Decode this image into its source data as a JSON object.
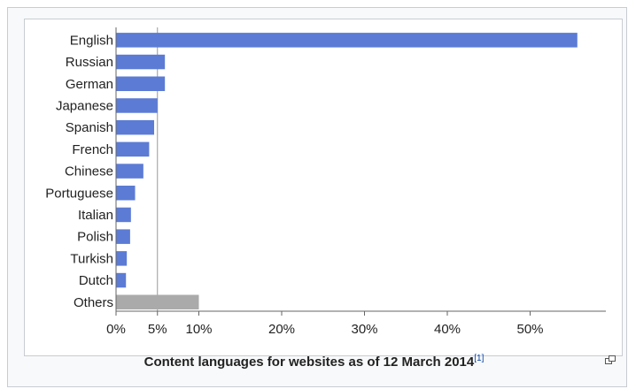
{
  "chart_data": {
    "type": "bar",
    "orientation": "horizontal",
    "categories": [
      "English",
      "Russian",
      "German",
      "Japanese",
      "Spanish",
      "French",
      "Chinese",
      "Portuguese",
      "Italian",
      "Polish",
      "Turkish",
      "Dutch",
      "Others"
    ],
    "values": [
      55.7,
      5.9,
      5.9,
      5.0,
      4.6,
      4.0,
      3.3,
      2.3,
      1.8,
      1.7,
      1.3,
      1.2,
      10.0
    ],
    "x_ticks": [
      "0%",
      "5%",
      "10%",
      "20%",
      "30%",
      "40%",
      "50%"
    ],
    "x_tick_values": [
      0,
      5,
      10,
      20,
      30,
      40,
      50
    ],
    "xlim": [
      0,
      59
    ],
    "grid": "single vertical reference line at 5%",
    "colors": {
      "bar": "#5b7bd5",
      "others": "#aaaaaa",
      "axis": "#666666"
    }
  },
  "caption": {
    "text": "Content languages for websites as of 12 March 2014",
    "ref": "[1]"
  },
  "icons": {
    "enlarge": "enlarge-icon"
  }
}
